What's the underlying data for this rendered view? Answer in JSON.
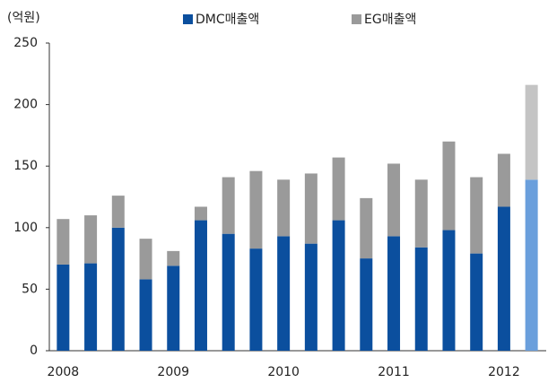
{
  "chart_data": {
    "type": "stacked_bar",
    "unit_label": "(억원)",
    "categories": [
      "2008",
      null,
      null,
      null,
      "2009",
      null,
      null,
      null,
      "2010",
      null,
      null,
      null,
      "2011",
      null,
      null,
      null,
      "2012",
      null
    ],
    "series": [
      {
        "name": "DMC매출액",
        "color": "#0b4f9e",
        "colors": [
          "#0b4f9e",
          "#0b4f9e",
          "#0b4f9e",
          "#0b4f9e",
          "#0b4f9e",
          "#0b4f9e",
          "#0b4f9e",
          "#0b4f9e",
          "#0b4f9e",
          "#0b4f9e",
          "#0b4f9e",
          "#0b4f9e",
          "#0b4f9e",
          "#0b4f9e",
          "#0b4f9e",
          "#0b4f9e",
          "#0b4f9e",
          "#6a9fdc"
        ],
        "values": [
          70,
          71,
          100,
          58,
          69,
          106,
          95,
          83,
          93,
          87,
          106,
          75,
          93,
          84,
          98,
          79,
          117,
          139
        ]
      },
      {
        "name": "EG매출액",
        "color": "#9a9a9a",
        "colors": [
          "#9a9a9a",
          "#9a9a9a",
          "#9a9a9a",
          "#9a9a9a",
          "#9a9a9a",
          "#9a9a9a",
          "#9a9a9a",
          "#9a9a9a",
          "#9a9a9a",
          "#9a9a9a",
          "#9a9a9a",
          "#9a9a9a",
          "#9a9a9a",
          "#9a9a9a",
          "#9a9a9a",
          "#9a9a9a",
          "#9a9a9a",
          "#c4c4c4"
        ],
        "values": [
          37,
          39,
          26,
          33,
          12,
          11,
          46,
          63,
          46,
          57,
          51,
          49,
          59,
          55,
          72,
          62,
          43,
          77
        ]
      }
    ],
    "ylim": [
      0,
      250
    ],
    "yticks": [
      0,
      50,
      100,
      150,
      200,
      250
    ],
    "legend": "top"
  }
}
